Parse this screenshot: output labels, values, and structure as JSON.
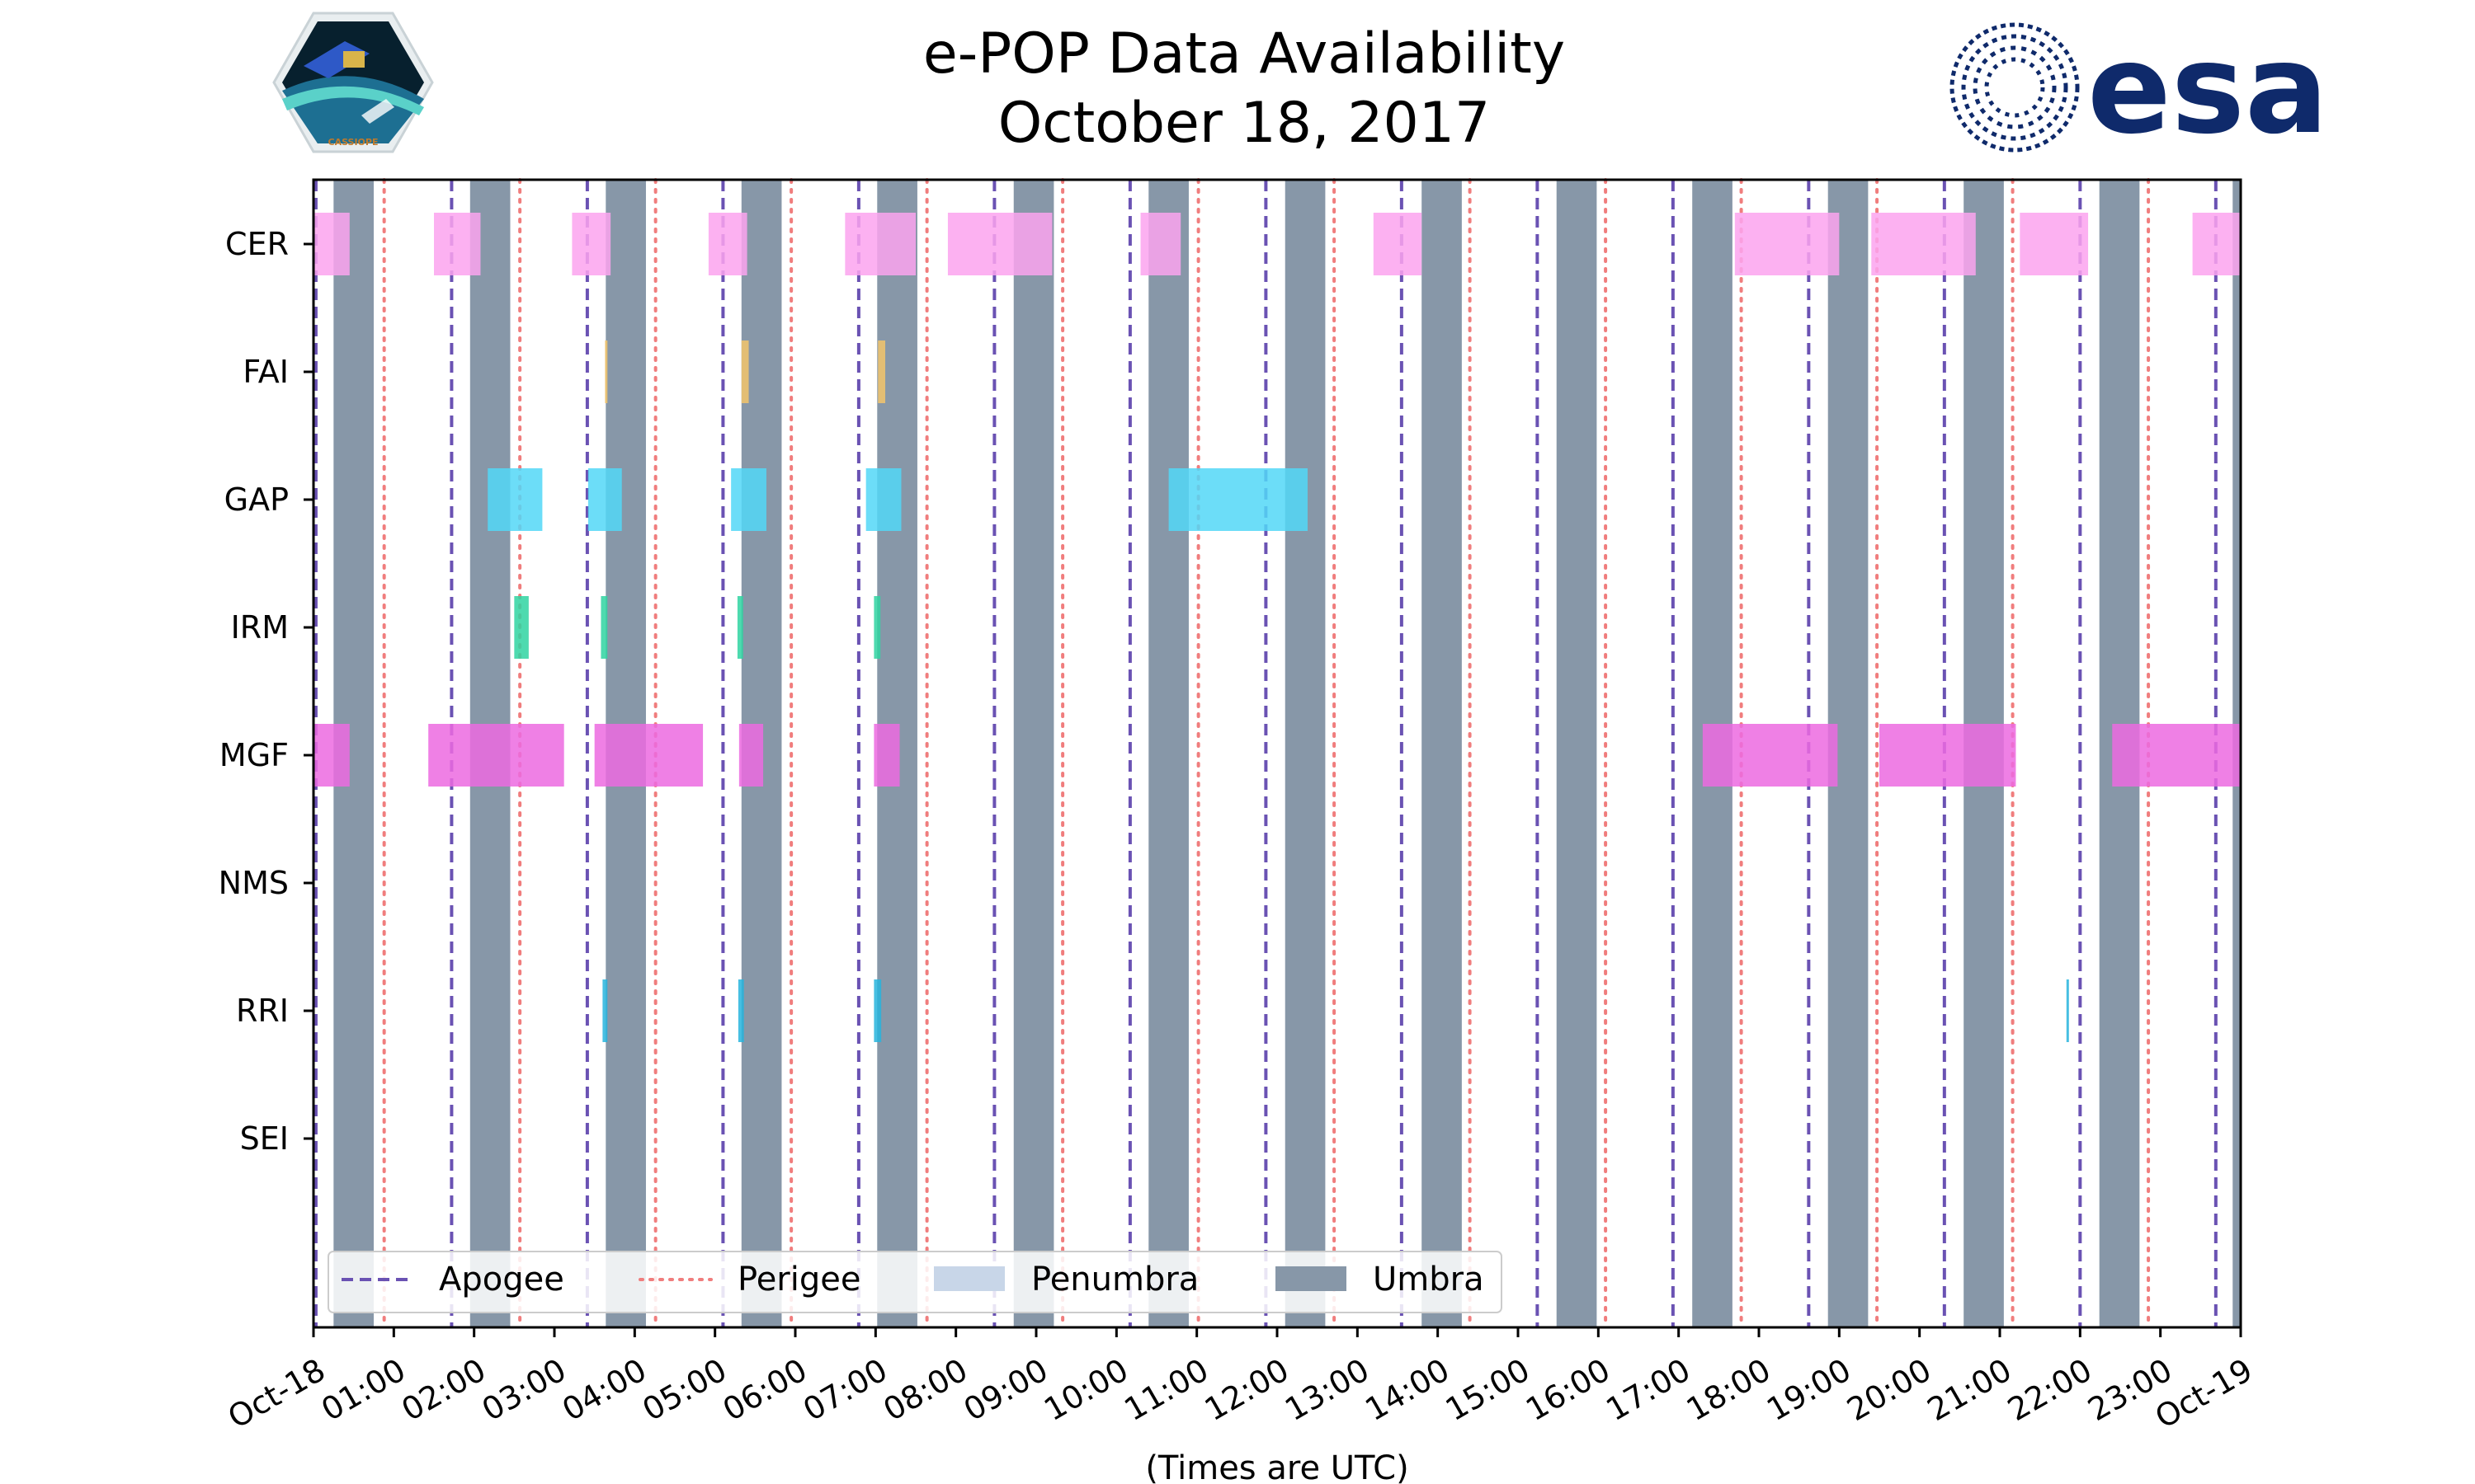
{
  "chart_data": {
    "type": "timeline",
    "title_lines": [
      "e-POP Data Availability",
      "October 18, 2017"
    ],
    "xlabel": "(Times are UTC)",
    "xlim_hours": [
      0,
      24
    ],
    "x_tick_labels": [
      "Oct-18",
      "01:00",
      "02:00",
      "03:00",
      "04:00",
      "05:00",
      "06:00",
      "07:00",
      "08:00",
      "09:00",
      "10:00",
      "11:00",
      "12:00",
      "13:00",
      "14:00",
      "15:00",
      "16:00",
      "17:00",
      "18:00",
      "19:00",
      "20:00",
      "21:00",
      "22:00",
      "23:00",
      "Oct-19"
    ],
    "instruments": [
      "CER",
      "FAI",
      "GAP",
      "IRM",
      "MGF",
      "NMS",
      "RRI",
      "SEI"
    ],
    "colors": {
      "CER": "#fba3ef",
      "FAI": "#f3c46b",
      "GAP": "#52d7f7",
      "IRM": "#2fd3a1",
      "MGF": "#ec6ae0",
      "NMS": "#aaaaaa",
      "RRI": "#27b4dd",
      "SEI": "#aaaaaa",
      "umbra": "#8797a8",
      "penumbra": "#c8d6e8",
      "apogee": "#6a52b3",
      "perigee": "#f07d7d"
    },
    "umbra_hours": [
      [
        0.25,
        0.75
      ],
      [
        1.95,
        2.45
      ],
      [
        3.64,
        4.14
      ],
      [
        5.33,
        5.83
      ],
      [
        7.02,
        7.52
      ],
      [
        8.72,
        9.22
      ],
      [
        10.4,
        10.9
      ],
      [
        12.1,
        12.6
      ],
      [
        13.8,
        14.3
      ],
      [
        15.48,
        15.98
      ],
      [
        17.17,
        17.67
      ],
      [
        18.86,
        19.36
      ],
      [
        20.55,
        21.05
      ],
      [
        22.24,
        22.74
      ],
      [
        23.9,
        24.0
      ]
    ],
    "apogee_hours": [
      0.03,
      1.72,
      3.41,
      5.1,
      6.79,
      8.48,
      10.17,
      11.86,
      13.55,
      15.24,
      16.93,
      18.62,
      20.31,
      22.0,
      23.69
    ],
    "perigee_hours": [
      0.88,
      2.57,
      4.26,
      5.95,
      7.64,
      9.33,
      11.02,
      12.71,
      14.4,
      16.09,
      17.78,
      19.47,
      21.16,
      22.85
    ],
    "availability": {
      "CER": [
        [
          0.0,
          0.45
        ],
        [
          1.5,
          2.08
        ],
        [
          3.22,
          3.7
        ],
        [
          4.92,
          5.4
        ],
        [
          6.62,
          7.5
        ],
        [
          7.9,
          9.2
        ],
        [
          10.3,
          10.8
        ],
        [
          13.2,
          13.8
        ],
        [
          17.7,
          19.0
        ],
        [
          19.4,
          20.7
        ],
        [
          21.25,
          22.1
        ],
        [
          23.4,
          24.0
        ]
      ],
      "FAI": [
        [
          3.63,
          3.65
        ],
        [
          5.33,
          5.42
        ],
        [
          7.03,
          7.12
        ]
      ],
      "GAP": [
        [
          2.17,
          2.85
        ],
        [
          3.42,
          3.84
        ],
        [
          5.2,
          5.64
        ],
        [
          6.88,
          7.32
        ],
        [
          10.65,
          12.38
        ]
      ],
      "IRM": [
        [
          2.5,
          2.68
        ],
        [
          3.58,
          3.66
        ],
        [
          5.28,
          5.35
        ],
        [
          6.98,
          7.06
        ]
      ],
      "MGF": [
        [
          0.0,
          0.45
        ],
        [
          1.43,
          3.12
        ],
        [
          3.5,
          4.85
        ],
        [
          5.3,
          5.6
        ],
        [
          6.98,
          7.3
        ],
        [
          17.3,
          18.98
        ],
        [
          19.5,
          21.2
        ],
        [
          22.4,
          24.0
        ]
      ],
      "NMS": [],
      "RRI": [
        [
          3.6,
          3.66
        ],
        [
          5.29,
          5.36
        ],
        [
          6.98,
          7.07
        ],
        [
          21.83,
          21.86
        ]
      ],
      "SEI": []
    },
    "legend": [
      {
        "key": "apogee",
        "label": "Apogee",
        "style": "dashed"
      },
      {
        "key": "perigee",
        "label": "Perigee",
        "style": "dotted"
      },
      {
        "key": "penumbra",
        "label": "Penumbra",
        "style": "patch"
      },
      {
        "key": "umbra",
        "label": "Umbra",
        "style": "patch"
      }
    ],
    "legend_position": "lower-left"
  },
  "logos": {
    "left": {
      "label": "CASSIOPE"
    },
    "right": {
      "label": "esa"
    }
  }
}
